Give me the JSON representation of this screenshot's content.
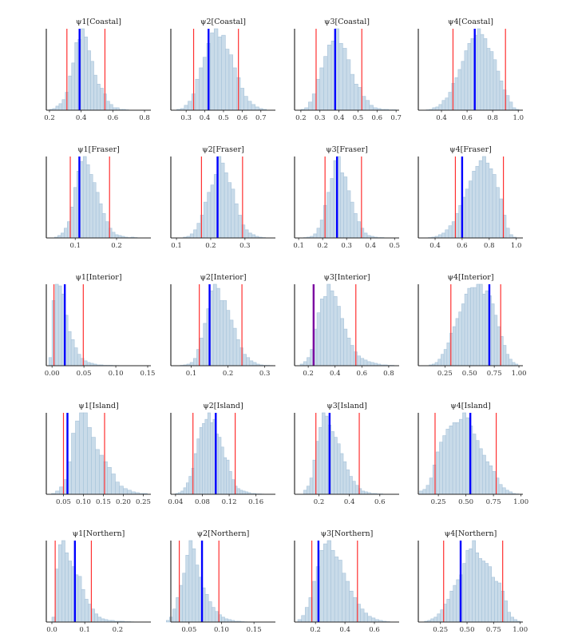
{
  "colors": {
    "bar_fill": "#c9dbe9",
    "bar_stroke": "#a7c3da",
    "interval_line": "#ff3030",
    "point_line": "#0000ff",
    "overlap_line": "#7a00a0",
    "axis": "#555555"
  },
  "chart_data": [
    {
      "type": "bar",
      "title": "ψ1[Coastal]",
      "xlim": [
        0.18,
        0.84
      ],
      "ticks": [
        0.2,
        0.4,
        0.6,
        0.8
      ],
      "tick_labels": [
        "0.2",
        "0.4",
        "0.6",
        "0.8"
      ],
      "bin_start": 0.2,
      "bin_width": 0.02,
      "counts": [
        1,
        2,
        5,
        8,
        13,
        22,
        42,
        58,
        83,
        87,
        100,
        90,
        73,
        60,
        43,
        32,
        27,
        20,
        11,
        7,
        3,
        3,
        1,
        1,
        0.5
      ],
      "point": 0.39,
      "interval": [
        0.31,
        0.55
      ]
    },
    {
      "type": "bar",
      "title": "ψ2[Coastal]",
      "xlim": [
        0.218,
        0.778
      ],
      "ticks": [
        0.3,
        0.4,
        0.5,
        0.6,
        0.7
      ],
      "tick_labels": [
        "0.3",
        "0.4",
        "0.5",
        "0.6",
        "0.7"
      ],
      "bin_start": 0.25,
      "bin_width": 0.02,
      "counts": [
        1,
        2,
        6,
        11,
        20,
        38,
        52,
        65,
        82,
        95,
        100,
        90,
        92,
        75,
        68,
        52,
        40,
        27,
        17,
        11,
        7,
        4,
        2,
        1
      ],
      "point": 0.42,
      "interval": [
        0.34,
        0.58
      ]
    },
    {
      "type": "bar",
      "title": "ψ3[Coastal]",
      "xlim": [
        0.167,
        0.716
      ],
      "ticks": [
        0.2,
        0.3,
        0.4,
        0.5,
        0.6,
        0.7
      ],
      "tick_labels": [
        "0.2",
        "0.3",
        "0.4",
        "0.5",
        "0.6",
        "0.7"
      ],
      "bin_start": 0.2,
      "bin_width": 0.02,
      "counts": [
        1,
        3,
        10,
        20,
        38,
        52,
        66,
        80,
        85,
        100,
        82,
        76,
        62,
        44,
        32,
        28,
        17,
        12,
        6,
        3,
        2,
        1,
        1,
        0.5,
        0.5
      ],
      "point": 0.38,
      "interval": [
        0.28,
        0.52
      ]
    },
    {
      "type": "bar",
      "title": "ψ4[Coastal]",
      "xlim": [
        0.219,
        1.036
      ],
      "ticks": [
        0.4,
        0.6,
        0.8,
        1.0
      ],
      "tick_labels": [
        "0.4",
        "0.6",
        "0.8",
        "1.0"
      ],
      "bin_start": 0.28,
      "bin_width": 0.025,
      "counts": [
        0.5,
        1,
        3,
        4,
        7,
        12,
        15,
        22,
        33,
        40,
        50,
        60,
        73,
        82,
        88,
        92,
        100,
        93,
        88,
        76,
        72,
        62,
        48,
        36,
        25,
        18,
        10,
        3,
        1
      ],
      "point": 0.66,
      "interval": [
        0.49,
        0.9
      ]
    },
    {
      "type": "bar",
      "title": "ψ1[Fraser]",
      "xlim": [
        0.03,
        0.283
      ],
      "ticks": [
        0.1,
        0.2
      ],
      "tick_labels": [
        "0.1",
        "0.2"
      ],
      "bin_start": 0.05,
      "bin_width": 0.0077,
      "counts": [
        1,
        3,
        6,
        12,
        20,
        38,
        62,
        82,
        94,
        100,
        90,
        78,
        68,
        56,
        42,
        30,
        20,
        12,
        7,
        4,
        3,
        2,
        1,
        0.5,
        1,
        0.5
      ],
      "point": 0.11,
      "interval": [
        0.088,
        0.183
      ]
    },
    {
      "type": "bar",
      "title": "ψ2[Fraser]",
      "xlim": [
        0.0835,
        0.389
      ],
      "ticks": [
        0.1,
        0.2,
        0.3
      ],
      "tick_labels": [
        "0.1",
        "0.2",
        "0.3"
      ],
      "bin_start": 0.12,
      "bin_width": 0.01,
      "counts": [
        1,
        2,
        5,
        10,
        18,
        28,
        44,
        56,
        65,
        78,
        100,
        92,
        80,
        68,
        60,
        42,
        28,
        16,
        10,
        6,
        4,
        2,
        1,
        0.5
      ],
      "point": 0.22,
      "interval": [
        0.173,
        0.293
      ]
    },
    {
      "type": "bar",
      "title": "ψ3[Fraser]",
      "xlim": [
        0.083,
        0.519
      ],
      "ticks": [
        0.1,
        0.2,
        0.3,
        0.4,
        0.5
      ],
      "tick_labels": [
        "0.1",
        "0.2",
        "0.3",
        "0.4",
        "0.5"
      ],
      "bin_start": 0.12,
      "bin_width": 0.014,
      "counts": [
        0.5,
        1,
        2,
        5,
        12,
        22,
        40,
        56,
        73,
        95,
        100,
        80,
        75,
        58,
        44,
        30,
        20,
        12,
        6,
        3,
        2,
        1,
        0.5,
        0.5,
        0.2
      ],
      "point": 0.26,
      "interval": [
        0.21,
        0.362
      ]
    },
    {
      "type": "bar",
      "title": "ψ4[Fraser]",
      "xlim": [
        0.276,
        1.049
      ],
      "ticks": [
        0.4,
        0.6,
        0.8,
        1.0
      ],
      "tick_labels": [
        "0.4",
        "0.6",
        "0.8",
        "1.0"
      ],
      "bin_start": 0.35,
      "bin_width": 0.025,
      "counts": [
        0.5,
        1,
        2,
        4,
        6,
        10,
        15,
        20,
        30,
        40,
        50,
        60,
        70,
        82,
        88,
        95,
        100,
        92,
        85,
        78,
        62,
        48,
        28,
        12,
        4,
        1
      ],
      "point": 0.6,
      "interval": [
        0.55,
        0.905
      ]
    },
    {
      "type": "bar",
      "title": "ψ1[Interior]",
      "xlim": [
        -0.009,
        0.155
      ],
      "ticks": [
        0.0,
        0.05,
        0.1,
        0.15
      ],
      "tick_labels": [
        "0.00",
        "0.05",
        "0.10",
        "0.15"
      ],
      "bin_start": -0.005,
      "bin_width": 0.005,
      "counts": [
        10,
        80,
        100,
        98,
        88,
        62,
        42,
        32,
        22,
        14,
        9,
        6,
        4,
        3,
        2,
        1,
        1,
        0.5,
        0.5,
        0.5,
        0.3,
        0.3,
        0.2,
        0.2,
        0.2,
        0.2,
        0.1,
        0.1,
        0.1
      ],
      "point": 0.02,
      "interval": [
        0.003,
        0.049
      ]
    },
    {
      "type": "bar",
      "title": "ψ2[Interior]",
      "xlim": [
        0.0446,
        0.329
      ],
      "ticks": [
        0.1,
        0.2,
        0.3
      ],
      "tick_labels": [
        "0.1",
        "0.2",
        "0.3"
      ],
      "bin_start": 0.07,
      "bin_width": 0.009,
      "counts": [
        0.5,
        1,
        2,
        4,
        9,
        20,
        34,
        52,
        70,
        92,
        100,
        95,
        80,
        80,
        68,
        56,
        46,
        32,
        22,
        14,
        10,
        6,
        4,
        2,
        1,
        0.5,
        0.5,
        0.3
      ],
      "point": 0.15,
      "interval": [
        0.122,
        0.238
      ]
    },
    {
      "type": "bar",
      "title": "ψ3[Interior]",
      "xlim": [
        0.098,
        0.878
      ],
      "ticks": [
        0.2,
        0.4,
        0.6,
        0.8
      ],
      "tick_labels": [
        "0.2",
        "0.4",
        "0.6",
        "0.8"
      ],
      "bin_start": 0.14,
      "bin_width": 0.025,
      "counts": [
        2,
        5,
        10,
        20,
        45,
        65,
        82,
        85,
        100,
        92,
        85,
        73,
        58,
        45,
        34,
        25,
        17,
        12,
        9,
        7,
        5,
        4,
        3,
        2,
        1,
        1,
        0.5,
        0.5
      ],
      "point": 0.24,
      "interval": [
        0.24,
        0.555
      ],
      "point_overlaps_interval": true
    },
    {
      "type": "bar",
      "title": "ψ4[Interior]",
      "xlim": [
        -0.02,
        1.04
      ],
      "ticks": [
        0.25,
        0.5,
        0.75,
        1.0
      ],
      "tick_labels": [
        "0.25",
        "0.50",
        "0.75",
        "1.00"
      ],
      "bin_start": 0.09,
      "bin_width": 0.03,
      "counts": [
        1,
        2,
        4,
        8,
        14,
        20,
        28,
        40,
        48,
        58,
        66,
        76,
        88,
        95,
        96,
        96,
        100,
        100,
        88,
        92,
        86,
        76,
        62,
        48,
        36,
        25,
        14,
        8,
        4,
        2
      ],
      "point": 0.7,
      "interval": [
        0.31,
        0.815
      ]
    },
    {
      "type": "bar",
      "title": "ψ1[Island]",
      "xlim": [
        0.007,
        0.269
      ],
      "ticks": [
        0.05,
        0.1,
        0.15,
        0.2,
        0.25
      ],
      "tick_labels": [
        "0.05",
        "0.10",
        "0.15",
        "0.20",
        "0.25"
      ],
      "bin_start": 0.02,
      "bin_width": 0.01,
      "counts": [
        1,
        4,
        9,
        18,
        40,
        75,
        90,
        100,
        100,
        82,
        70,
        55,
        48,
        40,
        33,
        25,
        15,
        10,
        7,
        5,
        3,
        2,
        1,
        1
      ],
      "point": 0.06,
      "interval": [
        0.05,
        0.153
      ]
    },
    {
      "type": "bar",
      "title": "ψ2[Island]",
      "xlim": [
        0.033,
        0.189
      ],
      "ticks": [
        0.04,
        0.08,
        0.12,
        0.16
      ],
      "tick_labels": [
        "0.04",
        "0.08",
        "0.12",
        "0.16"
      ],
      "bin_start": 0.04,
      "bin_width": 0.004,
      "counts": [
        1,
        2,
        4,
        8,
        14,
        22,
        32,
        50,
        68,
        82,
        87,
        92,
        100,
        88,
        92,
        74,
        70,
        58,
        45,
        42,
        28,
        18,
        10,
        7,
        5,
        4,
        3,
        2,
        1,
        1,
        0.5,
        0.5,
        0.3,
        0.2,
        0.2
      ],
      "point": 0.1,
      "interval": [
        0.066,
        0.129
      ]
    },
    {
      "type": "bar",
      "title": "ψ3[Island]",
      "xlim": [
        0.04,
        0.727
      ],
      "ticks": [
        0.2,
        0.4,
        0.6
      ],
      "tick_labels": [
        "0.2",
        "0.4",
        "0.6"
      ],
      "bin_start": 0.1,
      "bin_width": 0.02,
      "counts": [
        5,
        10,
        20,
        42,
        65,
        82,
        100,
        96,
        85,
        77,
        70,
        62,
        50,
        40,
        30,
        22,
        16,
        11,
        7,
        4,
        3,
        2,
        1,
        1,
        0.5,
        0.5
      ],
      "point": 0.27,
      "interval": [
        0.18,
        0.465
      ]
    },
    {
      "type": "bar",
      "title": "ψ4[Island]",
      "xlim": [
        0.068,
        1.017
      ],
      "ticks": [
        0.25,
        0.5,
        0.75,
        1.0
      ],
      "tick_labels": [
        "0.25",
        "0.50",
        "0.75",
        "1.00"
      ],
      "bin_start": 0.08,
      "bin_width": 0.03,
      "counts": [
        4,
        6,
        11,
        20,
        36,
        52,
        64,
        72,
        80,
        84,
        88,
        88,
        92,
        100,
        94,
        84,
        74,
        66,
        56,
        48,
        40,
        35,
        28,
        20,
        12,
        8,
        5,
        3,
        1,
        0.5
      ],
      "point": 0.54,
      "interval": [
        0.22,
        0.775
      ]
    },
    {
      "type": "bar",
      "title": "ψ1[Northern]",
      "xlim": [
        -0.017,
        0.301
      ],
      "ticks": [
        0.0,
        0.1,
        0.2
      ],
      "tick_labels": [
        "0.0",
        "0.1",
        "0.2"
      ],
      "bin_start": 0.0,
      "bin_width": 0.01,
      "counts": [
        6,
        65,
        95,
        100,
        85,
        75,
        68,
        58,
        56,
        40,
        28,
        22,
        16,
        10,
        6,
        4,
        3,
        2,
        2,
        1,
        1,
        1,
        0.5,
        0.5,
        0.3
      ],
      "point": 0.07,
      "interval": [
        0.01,
        0.12
      ]
    },
    {
      "type": "bar",
      "title": "ψ2[Northern]",
      "xlim": [
        0.022,
        0.183
      ],
      "ticks": [
        0.05,
        0.1,
        0.15
      ],
      "tick_labels": [
        "0.05",
        "0.10",
        "0.15"
      ],
      "bin_start": 0.015,
      "bin_width": 0.005,
      "counts": [
        2,
        6,
        16,
        30,
        45,
        60,
        82,
        100,
        90,
        70,
        55,
        42,
        34,
        25,
        18,
        13,
        9,
        6,
        4,
        3,
        2,
        1,
        1,
        0.5,
        0.3
      ],
      "point": 0.07,
      "interval": [
        0.035,
        0.096
      ]
    },
    {
      "type": "bar",
      "title": "ψ3[Northern]",
      "xlim": [
        0.058,
        0.768
      ],
      "ticks": [
        0.2,
        0.4,
        0.6
      ],
      "tick_labels": [
        "0.2",
        "0.4",
        "0.6"
      ],
      "bin_start": 0.08,
      "bin_width": 0.025,
      "counts": [
        3,
        8,
        18,
        30,
        50,
        68,
        88,
        96,
        100,
        88,
        80,
        76,
        60,
        50,
        38,
        30,
        22,
        16,
        11,
        7,
        5,
        3,
        2,
        1,
        0.5
      ],
      "point": 0.22,
      "interval": [
        0.175,
        0.485
      ]
    },
    {
      "type": "bar",
      "title": "ψ4[Northern]",
      "xlim": [
        0.042,
        1.025
      ],
      "ticks": [
        0.25,
        0.5,
        0.75,
        1.0
      ],
      "tick_labels": [
        "0.25",
        "0.50",
        "0.75",
        "1.00"
      ],
      "bin_start": 0.1,
      "bin_width": 0.03,
      "counts": [
        1,
        2,
        4,
        6,
        10,
        15,
        22,
        28,
        38,
        45,
        52,
        58,
        72,
        88,
        90,
        100,
        85,
        78,
        75,
        72,
        68,
        55,
        50,
        48,
        38,
        26,
        12,
        6,
        3,
        1
      ],
      "point": 0.44,
      "interval": [
        0.28,
        0.835
      ]
    }
  ]
}
